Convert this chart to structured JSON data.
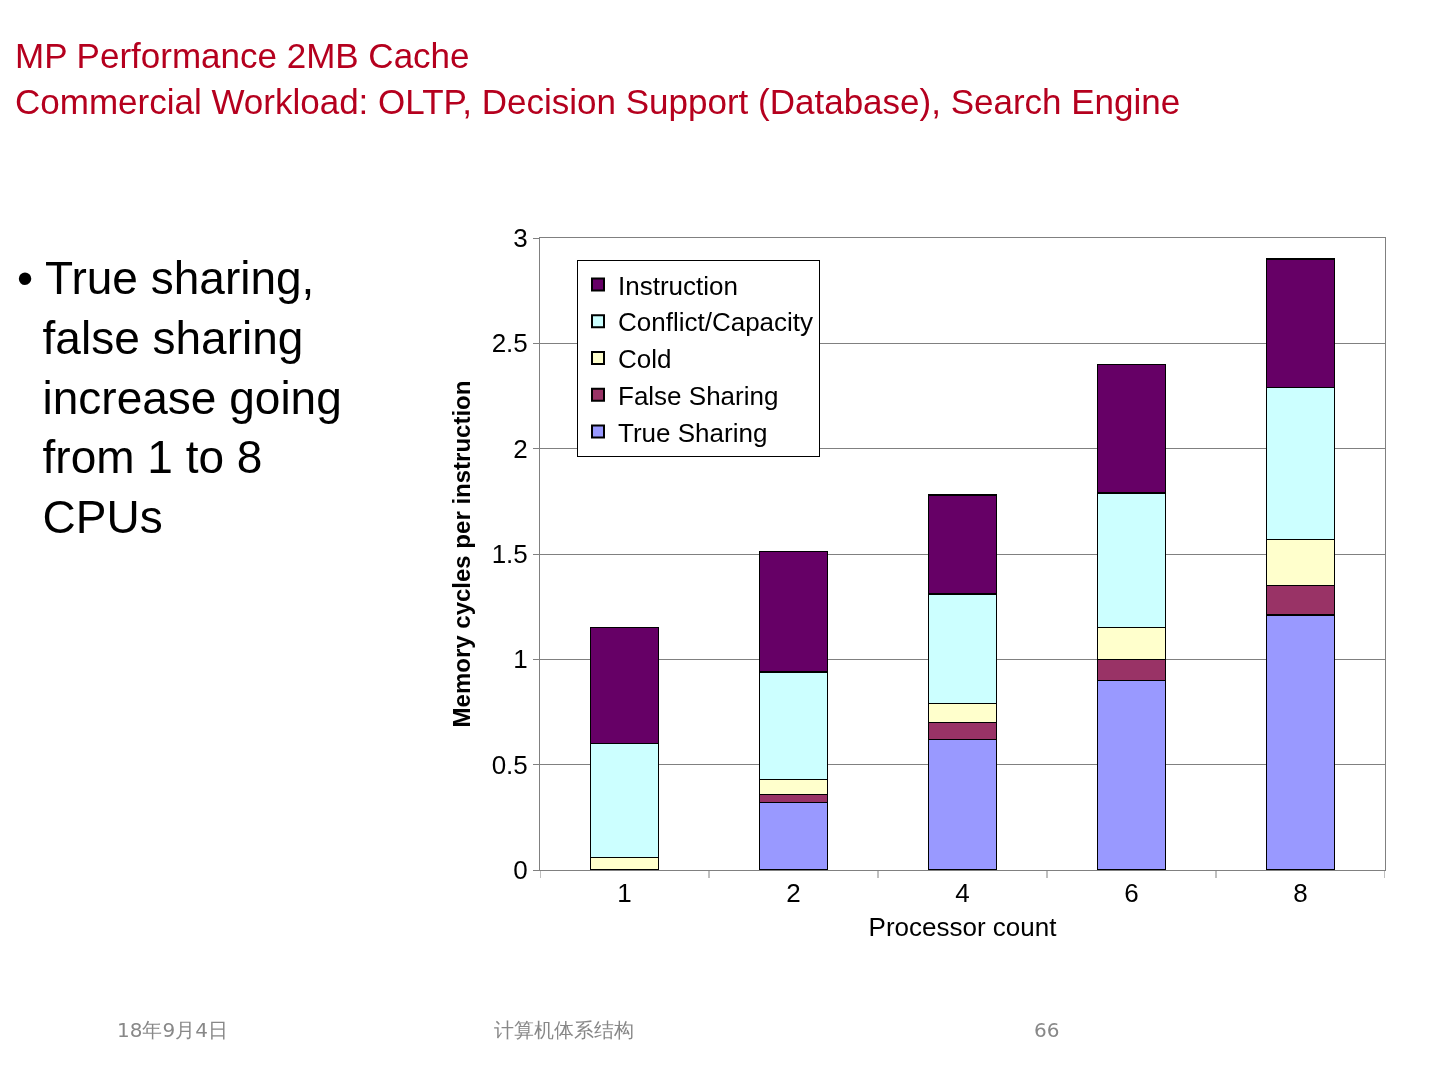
{
  "chart_data": {
    "type": "bar",
    "stacked": true,
    "title": "MP Performance 2MB Cache",
    "subtitle": "Commercial Workload: OLTP, Decision Support (Database), Search Engine",
    "xlabel": "Processor count",
    "ylabel": "Memory cycles per instruction",
    "categories": [
      "1",
      "2",
      "4",
      "6",
      "8"
    ],
    "series": [
      {
        "name": "True Sharing",
        "color": "#9999ff",
        "values": [
          0,
          0.32,
          0.62,
          0.9,
          1.21
        ]
      },
      {
        "name": "False Sharing",
        "color": "#993366",
        "values": [
          0,
          0.04,
          0.08,
          0.1,
          0.14
        ]
      },
      {
        "name": "Cold",
        "color": "#ffffcc",
        "values": [
          0.06,
          0.07,
          0.09,
          0.15,
          0.22
        ]
      },
      {
        "name": "Conflict/Capacity",
        "color": "#ccffff",
        "values": [
          0.54,
          0.51,
          0.52,
          0.64,
          0.72
        ]
      },
      {
        "name": "Instruction",
        "color": "#660066",
        "values": [
          0.55,
          0.57,
          0.47,
          0.61,
          0.61
        ]
      }
    ],
    "ylim": [
      0,
      3
    ],
    "yticks": [
      0,
      0.5,
      1,
      1.5,
      2,
      2.5,
      3
    ],
    "grid": "y",
    "legend": "top left",
    "annotations": [
      "• True sharing, false sharing increase going from 1 to 8 CPUs",
      "18年9月4日",
      "计算机体系结构",
      "66"
    ]
  }
}
